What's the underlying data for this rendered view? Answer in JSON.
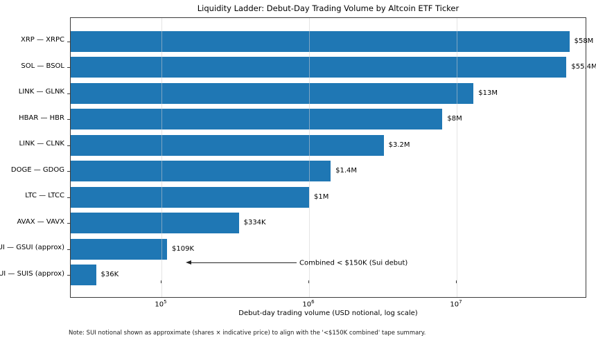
{
  "title": "Liquidity Ladder: Debut-Day Trading Volume by Altcoin ETF Ticker",
  "footnote": "Note: SUI notional shown as approximate (shares × indicative price) to align with the '<$150K combined' tape summary.",
  "chart_data": {
    "type": "bar",
    "orientation": "horizontal",
    "x_scale": "log",
    "title": "Liquidity Ladder: Debut-Day Trading Volume by Altcoin ETF Ticker",
    "xlabel": "Debut-day trading volume (USD notional, log scale)",
    "ylabel": "",
    "categories": [
      "XRP — XRPC",
      "SOL — BSOL",
      "LINK — GLNK",
      "HBAR — HBR",
      "LINK — CLNK",
      "DOGE — GDOG",
      "LTC — LTCC",
      "AVAX — VAVX",
      "SUI — GSUI (approx)",
      "SUI — SUIS (approx)"
    ],
    "values": [
      58000000,
      55400000,
      13000000,
      8000000,
      3200000,
      1400000,
      1000000,
      334000,
      109000,
      36000
    ],
    "value_labels": [
      "$58M",
      "$55.4M",
      "$13M",
      "$8M",
      "$3.2M",
      "$1.4M",
      "$1M",
      "$334K",
      "$109K",
      "$36K"
    ],
    "xlim": [
      24266,
      76300000
    ],
    "xticks": [
      {
        "value": 100000,
        "base": "10",
        "exp": "5"
      },
      {
        "value": 1000000,
        "base": "10",
        "exp": "6"
      },
      {
        "value": 10000000,
        "base": "10",
        "exp": "7"
      }
    ],
    "grid": true,
    "legend": "none",
    "bar_color": "#1f77b4",
    "annotation": {
      "text": "Combined < $150K (Sui debut)",
      "points_to": "gap between SUI — GSUI and SUI — SUIS bars"
    }
  }
}
